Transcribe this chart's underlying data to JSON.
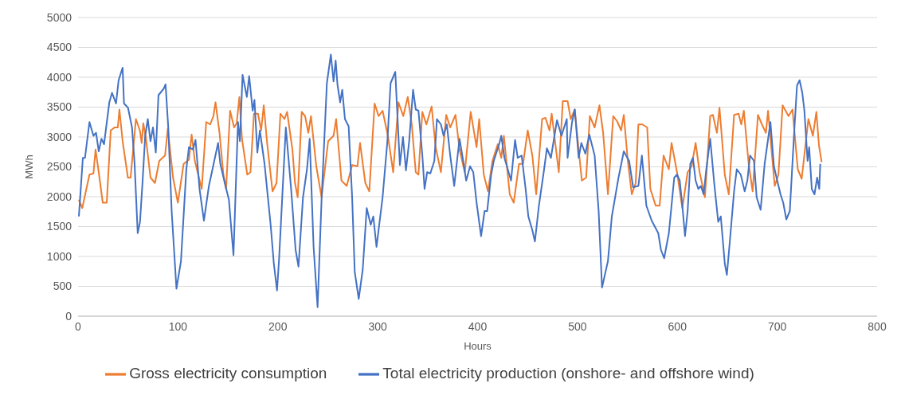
{
  "chart_data": {
    "type": "line",
    "xlabel": "Hours",
    "ylabel": "MWh",
    "xlim": [
      0,
      800
    ],
    "xticks": [
      0,
      100,
      200,
      300,
      400,
      500,
      600,
      700,
      800
    ],
    "ylim": [
      0,
      5000
    ],
    "yticks": [
      0,
      500,
      1000,
      1500,
      2000,
      2500,
      3000,
      3500,
      4000,
      4500,
      5000
    ],
    "grid": "y",
    "legend": "bottom",
    "marker": "none",
    "line_style": "solid",
    "series": [
      {
        "name": "Gross electricity consumption",
        "color": "#ed7d31",
        "x": [
          0.8,
          4.2,
          11.4,
          15.4,
          17.5,
          20.7,
          24.7,
          28.7,
          32.7,
          36.6,
          39.8,
          41.4,
          44.6,
          49.9,
          52.6,
          57.9,
          61.9,
          63.7,
          65.3,
          68,
          72.5,
          77,
          81.3,
          87.1,
          89.8,
          95.1,
          99.9,
          105.7,
          111,
          113.7,
          116.9,
          123.8,
          128.3,
          132.3,
          135.5,
          137.6,
          141.6,
          145.5,
          148.2,
          152.2,
          156.2,
          158.8,
          161.5,
          164.1,
          169.4,
          172.6,
          176.1,
          180.1,
          183.3,
          185.9,
          189.4,
          194.7,
          198.7,
          202.6,
          206.6,
          209.3,
          214.6,
          217.2,
          219.9,
          223.9,
          227.3,
          230.5,
          233.2,
          238.5,
          243.8,
          250.4,
          255.8,
          258.4,
          263.7,
          269,
          274.4,
          279.7,
          282.3,
          287.6,
          291.6,
          296.9,
          300.9,
          304.9,
          310.2,
          315.5,
          320.8,
          325.6,
          330.1,
          334.1,
          338.1,
          340.8,
          344.7,
          348.7,
          354,
          358,
          363.3,
          368.6,
          372.6,
          377.9,
          381.9,
          387.2,
          393.1,
          399,
          401.6,
          406.2,
          410.4,
          414.9,
          420.2,
          423.7,
          426.3,
          432.2,
          436.2,
          441.5,
          445.5,
          450.2,
          454.8,
          458.7,
          464.6,
          468,
          472,
          474.2,
          481.3,
          485.3,
          490.1,
          493.3,
          497.3,
          501.2,
          504.4,
          508.7,
          512.4,
          517.2,
          522,
          525.7,
          530.5,
          535.8,
          539.8,
          543.7,
          546.4,
          550.4,
          554.4,
          558.3,
          561,
          565,
          569.8,
          573,
          578.3,
          582.3,
          586.2,
          591.5,
          594.2,
          599.7,
          605,
          610.3,
          614.3,
          618.3,
          622.3,
          627.6,
          632.9,
          635.6,
          639.6,
          642.2,
          647.5,
          651.5,
          656.8,
          661.3,
          664,
          666.6,
          671.4,
          675.4,
          680.7,
          684.7,
          688.7,
          690.8,
          697.5,
          701.2,
          705.4,
          711.3,
          715.3,
          720.6,
          724.5,
          731.2,
          735.7,
          739.2,
          741.8,
          744.5
        ],
        "values": [
          1950,
          1810,
          2370,
          2390,
          2790,
          2410,
          1900,
          1900,
          3110,
          3160,
          3160,
          3460,
          2930,
          2320,
          2320,
          3300,
          3110,
          2900,
          3230,
          2970,
          2320,
          2230,
          2600,
          2690,
          3140,
          2320,
          1900,
          2550,
          2620,
          3040,
          2600,
          2130,
          3250,
          3210,
          3350,
          3580,
          3070,
          2370,
          2130,
          3440,
          3160,
          3230,
          3670,
          2970,
          2370,
          2410,
          3390,
          3390,
          3110,
          3530,
          2880,
          2090,
          2230,
          3390,
          3300,
          3420,
          2790,
          2230,
          1990,
          3420,
          3350,
          3070,
          3350,
          2510,
          1990,
          2930,
          3020,
          3300,
          2270,
          2180,
          2530,
          2510,
          2900,
          2230,
          2090,
          3560,
          3350,
          3440,
          3020,
          2410,
          3580,
          3350,
          3670,
          3210,
          2410,
          2370,
          3420,
          3210,
          3510,
          2830,
          2410,
          3370,
          3160,
          3370,
          2790,
          2410,
          3420,
          2830,
          3300,
          2370,
          2090,
          2600,
          2880,
          2650,
          3020,
          2040,
          1900,
          2550,
          2550,
          3110,
          2690,
          2040,
          3300,
          3320,
          3110,
          3390,
          2410,
          3600,
          3600,
          3300,
          3460,
          2790,
          2270,
          2320,
          3350,
          3160,
          3530,
          3070,
          2040,
          3350,
          3260,
          3110,
          3370,
          2600,
          2040,
          2230,
          3210,
          3210,
          3160,
          2130,
          1850,
          1850,
          2690,
          2460,
          2900,
          2410,
          1810,
          2410,
          2510,
          2900,
          2410,
          1990,
          3350,
          3370,
          3070,
          3490,
          2370,
          2040,
          3370,
          3390,
          3210,
          3440,
          2550,
          2090,
          3370,
          3210,
          3070,
          3440,
          2180,
          2370,
          3530,
          3350,
          3460,
          2460,
          2300,
          3300,
          3020,
          3420,
          2860,
          2580
        ]
      },
      {
        "name": "Total electricity production (onshore- and offshore wind)",
        "color": "#4472c4",
        "x": [
          0.8,
          4.8,
          6.9,
          11.4,
          15.4,
          18,
          20.7,
          23.4,
          26,
          31.3,
          34,
          38,
          40.6,
          44.6,
          46,
          50,
          54,
          56.6,
          59.7,
          62,
          64.5,
          67.2,
          69.8,
          72.5,
          75,
          77.8,
          80.5,
          85.8,
          87.6,
          90.3,
          93.7,
          98.5,
          103,
          108.4,
          111,
          115,
          117.6,
          121.6,
          126,
          131,
          140.2,
          142.4,
          146.9,
          151,
          155.6,
          160.1,
          162,
          164.7,
          169,
          171.3,
          174.8,
          176.6,
          179.5,
          182,
          186.7,
          192.8,
          196,
          199.2,
          201.3,
          208,
          213.3,
          217.8,
          220.7,
          225.2,
          229.2,
          231.9,
          235.8,
          239.8,
          243.8,
          249.1,
          253.1,
          255.8,
          257.9,
          259.7,
          262.4,
          264.5,
          267.2,
          270.9,
          274.4,
          277,
          281,
          285,
          289,
          293,
          295.6,
          298.8,
          304.9,
          309.7,
          312.9,
          317.6,
          319.5,
          322.2,
          325.3,
          328.3,
          331.5,
          335.4,
          338.1,
          340.8,
          344.7,
          346.9,
          349.5,
          352.7,
          356.7,
          359.3,
          363.3,
          366,
          369.2,
          372.6,
          376.6,
          381.9,
          385.1,
          388.6,
          392.5,
          395.7,
          399,
          403.5,
          407,
          409.6,
          413.6,
          416.2,
          421.6,
          423.7,
          426.9,
          433.5,
          437.5,
          440.2,
          444.1,
          448.1,
          450.8,
          454.8,
          457.4,
          461.4,
          466.2,
          469.4,
          473.4,
          479.5,
          484,
          489.3,
          490.1,
          494.6,
          497.3,
          501.2,
          503.9,
          507.9,
          511.9,
          517.2,
          521.2,
          524.6,
          530.5,
          534.4,
          541.1,
          546.4,
          551.7,
          555.7,
          561,
          564.5,
          569,
          574.3,
          580.9,
          583.6,
          586.8,
          591.5,
          596.9,
          599.7,
          602.4,
          605,
          607.7,
          610.3,
          613,
          615.6,
          618.3,
          621,
          623.6,
          626.3,
          629,
          632.9,
          636.9,
          640.9,
          643.5,
          647.5,
          649.6,
          652.8,
          656.8,
          659.5,
          663.5,
          667.4,
          670.1,
          672.8,
          676.7,
          679.4,
          683.4,
          687.4,
          693.2,
          696.7,
          699.3,
          703.3,
          706,
          709.1,
          712.6,
          716.6,
          719.8,
          722.4,
          725.1,
          727.2,
          730.4,
          732,
          734.6,
          737.3,
          740,
          742.1,
          743.1
        ],
        "values": [
          1670,
          2650,
          2650,
          3250,
          3020,
          3070,
          2760,
          2970,
          2880,
          3580,
          3740,
          3560,
          3950,
          4160,
          3560,
          3490,
          3160,
          2550,
          1390,
          1580,
          2230,
          3020,
          3300,
          2930,
          3160,
          2740,
          3700,
          3810,
          3880,
          3160,
          1760,
          460,
          920,
          2460,
          2830,
          2790,
          2950,
          2130,
          1600,
          2180,
          2900,
          2550,
          2230,
          1950,
          1020,
          3250,
          2930,
          4040,
          3670,
          4020,
          3440,
          3620,
          2740,
          3110,
          2550,
          1530,
          880,
          430,
          970,
          3160,
          2130,
          1110,
          830,
          1990,
          2460,
          2970,
          1160,
          150,
          1950,
          3900,
          4380,
          3930,
          4280,
          3880,
          3580,
          3790,
          3300,
          3180,
          1990,
          740,
          290,
          780,
          1810,
          1530,
          1670,
          1160,
          1990,
          2930,
          3900,
          4090,
          3440,
          2530,
          3000,
          2440,
          2930,
          3790,
          3460,
          3440,
          2690,
          2130,
          2410,
          2390,
          2600,
          3300,
          3210,
          3020,
          3210,
          2690,
          2180,
          2970,
          2650,
          2270,
          2510,
          2410,
          1900,
          1340,
          1760,
          1760,
          2370,
          2600,
          2880,
          3020,
          2650,
          2270,
          2950,
          2650,
          2690,
          2130,
          1670,
          1440,
          1250,
          1850,
          2410,
          2810,
          2650,
          3280,
          3020,
          3300,
          2650,
          3250,
          3460,
          2650,
          2900,
          2720,
          3040,
          2690,
          1760,
          480,
          920,
          1670,
          2320,
          2760,
          2600,
          2160,
          2180,
          2690,
          1850,
          1600,
          1390,
          1110,
          970,
          1390,
          2320,
          2370,
          2270,
          1850,
          1340,
          1760,
          2550,
          2650,
          2270,
          2130,
          2180,
          2040,
          2460,
          2970,
          2230,
          1580,
          1670,
          880,
          690,
          1300,
          2090,
          2460,
          2370,
          2090,
          2270,
          2690,
          2600,
          1990,
          1780,
          2550,
          3250,
          2510,
          2320,
          2040,
          1900,
          1620,
          1760,
          2970,
          3860,
          3950,
          3740,
          3440,
          2600,
          2830,
          2130,
          2040,
          2320,
          2130,
          2550
        ]
      }
    ]
  }
}
